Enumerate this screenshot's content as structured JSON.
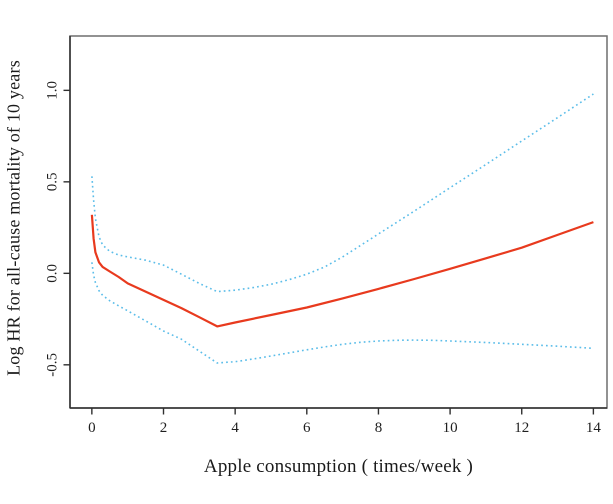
{
  "figure": {
    "background": "#ffffff",
    "box_color": "#6e6e6e",
    "axis_color": "#2f2f2f",
    "tick_label_color": "#1f1f1f"
  },
  "chart_data": {
    "type": "line",
    "title": "",
    "xlabel": "Apple consumption ( times/week )",
    "ylabel": "Log HR for all-cause mortality of 10 years",
    "xlim": [
      -0.61,
      14.38
    ],
    "ylim": [
      -0.736,
      1.297
    ],
    "x_ticks": [
      0,
      2,
      4,
      6,
      8,
      10,
      12,
      14
    ],
    "x_tick_labels": [
      "0",
      "2",
      "4",
      "6",
      "8",
      "10",
      "12",
      "14"
    ],
    "y_ticks": [
      -0.5,
      0.0,
      0.5,
      1.0
    ],
    "y_tick_labels": [
      "-0.5",
      "0.0",
      "0.5",
      "1.0"
    ],
    "grid": false,
    "legend": "none",
    "series": [
      {
        "name": "log-hr-estimate",
        "style": "solid",
        "color": "#e83a1e",
        "width": 2.2,
        "points": [
          [
            0,
            0.32
          ],
          [
            0.05,
            0.19
          ],
          [
            0.1,
            0.115
          ],
          [
            0.2,
            0.06
          ],
          [
            0.3,
            0.035
          ],
          [
            0.5,
            0.01
          ],
          [
            0.75,
            -0.02
          ],
          [
            1,
            -0.055
          ],
          [
            1.5,
            -0.1
          ],
          [
            2,
            -0.145
          ],
          [
            2.5,
            -0.19
          ],
          [
            3,
            -0.24
          ],
          [
            3.5,
            -0.29
          ],
          [
            4,
            -0.269
          ],
          [
            5,
            -0.228
          ],
          [
            6,
            -0.187
          ],
          [
            7,
            -0.137
          ],
          [
            8,
            -0.085
          ],
          [
            9,
            -0.031
          ],
          [
            10,
            0.025
          ],
          [
            11,
            0.082
          ],
          [
            12,
            0.14
          ],
          [
            13,
            0.21
          ],
          [
            14,
            0.28
          ]
        ]
      },
      {
        "name": "ci-upper",
        "style": "dotted",
        "color": "#5bbde9",
        "width": 1.6,
        "points": [
          [
            0,
            0.53
          ],
          [
            0.05,
            0.4
          ],
          [
            0.1,
            0.3
          ],
          [
            0.2,
            0.2
          ],
          [
            0.3,
            0.155
          ],
          [
            0.5,
            0.12
          ],
          [
            0.75,
            0.1
          ],
          [
            1,
            0.09
          ],
          [
            1.5,
            0.072
          ],
          [
            2,
            0.045
          ],
          [
            2.5,
            -0.005
          ],
          [
            3,
            -0.055
          ],
          [
            3.5,
            -0.1
          ],
          [
            4,
            -0.092
          ],
          [
            4.5,
            -0.078
          ],
          [
            5,
            -0.06
          ],
          [
            5.5,
            -0.035
          ],
          [
            6,
            -0.005
          ],
          [
            6.5,
            0.035
          ],
          [
            7,
            0.09
          ],
          [
            7.5,
            0.152
          ],
          [
            8,
            0.215
          ],
          [
            9,
            0.34
          ],
          [
            10,
            0.468
          ],
          [
            11,
            0.595
          ],
          [
            12,
            0.723
          ],
          [
            13,
            0.851
          ],
          [
            14,
            0.98
          ]
        ]
      },
      {
        "name": "ci-lower",
        "style": "dotted",
        "color": "#5bbde9",
        "width": 1.6,
        "points": [
          [
            0,
            0.06
          ],
          [
            0.05,
            -0.01
          ],
          [
            0.1,
            -0.05
          ],
          [
            0.2,
            -0.095
          ],
          [
            0.3,
            -0.12
          ],
          [
            0.5,
            -0.15
          ],
          [
            0.75,
            -0.178
          ],
          [
            1,
            -0.205
          ],
          [
            1.5,
            -0.26
          ],
          [
            2,
            -0.315
          ],
          [
            2.5,
            -0.36
          ],
          [
            3,
            -0.425
          ],
          [
            3.5,
            -0.49
          ],
          [
            4,
            -0.483
          ],
          [
            4.5,
            -0.468
          ],
          [
            5,
            -0.452
          ],
          [
            5.5,
            -0.435
          ],
          [
            6,
            -0.418
          ],
          [
            6.5,
            -0.402
          ],
          [
            7,
            -0.388
          ],
          [
            7.5,
            -0.377
          ],
          [
            8,
            -0.37
          ],
          [
            8.5,
            -0.366
          ],
          [
            9,
            -0.365
          ],
          [
            9.5,
            -0.366
          ],
          [
            10,
            -0.37
          ],
          [
            11,
            -0.378
          ],
          [
            12,
            -0.388
          ],
          [
            13,
            -0.398
          ],
          [
            14,
            -0.41
          ]
        ]
      }
    ]
  }
}
